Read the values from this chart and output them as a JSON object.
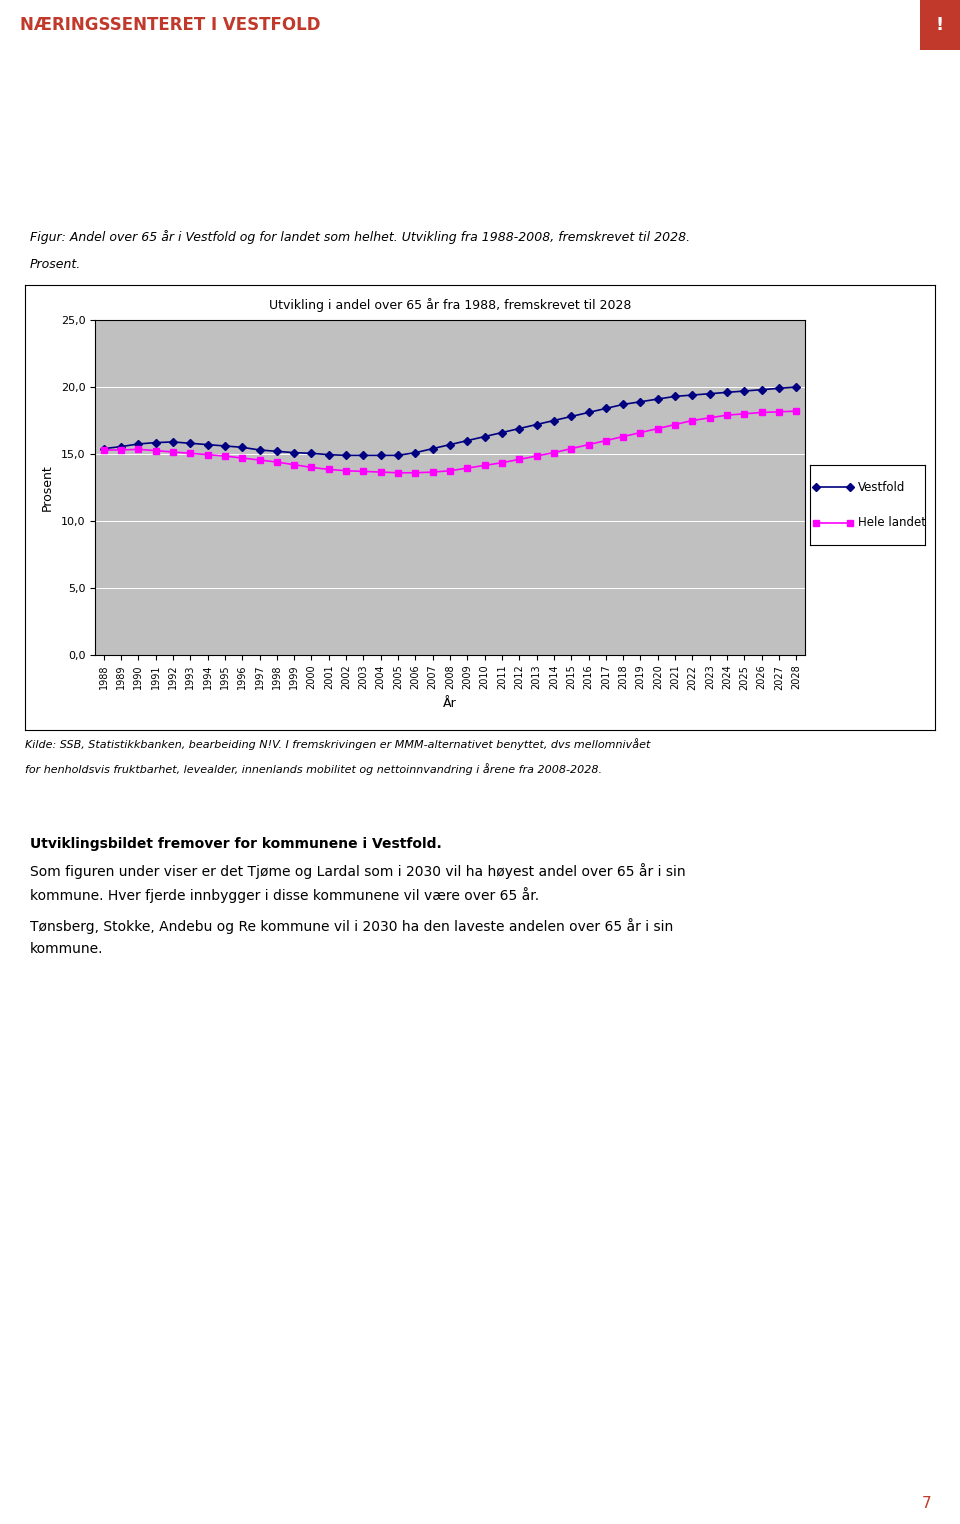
{
  "header_text": "NÆRINGSSENTERET I VESTFOLD",
  "header_bg": "#f0ece8",
  "header_color": "#c0392b",
  "red_box_color": "#c0392b",
  "fig_caption_line1": "Figur: Andel over 65 år i Vestfold og for landet som helhet. Utvikling fra 1988-2008, fremskrevet til 2028.",
  "fig_caption_line2": "Prosent.",
  "chart_title": "Utvikling i andel over 65 år fra 1988, fremskrevet til 2028",
  "xlabel": "År",
  "ylabel": "Prosent",
  "chart_bg": "#c0c0c0",
  "ylim": [
    0,
    25
  ],
  "yticks": [
    0.0,
    5.0,
    10.0,
    15.0,
    20.0,
    25.0
  ],
  "ytick_labels": [
    "0,0",
    "5,0",
    "10,0",
    "15,0",
    "20,0",
    "25,0"
  ],
  "years": [
    1988,
    1989,
    1990,
    1991,
    1992,
    1993,
    1994,
    1995,
    1996,
    1997,
    1998,
    1999,
    2000,
    2001,
    2002,
    2003,
    2004,
    2005,
    2006,
    2007,
    2008,
    2009,
    2010,
    2011,
    2012,
    2013,
    2014,
    2015,
    2016,
    2017,
    2018,
    2019,
    2020,
    2021,
    2022,
    2023,
    2024,
    2025,
    2026,
    2027,
    2028
  ],
  "vestfold": [
    15.4,
    15.55,
    15.75,
    15.85,
    15.9,
    15.8,
    15.7,
    15.6,
    15.5,
    15.3,
    15.2,
    15.1,
    15.05,
    14.95,
    14.9,
    14.9,
    14.9,
    14.9,
    15.1,
    15.4,
    15.7,
    16.0,
    16.3,
    16.6,
    16.9,
    17.2,
    17.5,
    17.8,
    18.1,
    18.4,
    18.7,
    18.9,
    19.1,
    19.3,
    19.4,
    19.5,
    19.6,
    19.7,
    19.8,
    19.9,
    20.0
  ],
  "hele_landet": [
    15.3,
    15.3,
    15.35,
    15.25,
    15.15,
    15.05,
    14.95,
    14.85,
    14.7,
    14.55,
    14.4,
    14.2,
    14.0,
    13.85,
    13.75,
    13.7,
    13.65,
    13.6,
    13.6,
    13.65,
    13.75,
    13.95,
    14.15,
    14.35,
    14.6,
    14.85,
    15.1,
    15.4,
    15.7,
    16.0,
    16.3,
    16.6,
    16.9,
    17.2,
    17.5,
    17.7,
    17.9,
    18.0,
    18.1,
    18.15,
    18.2
  ],
  "vestfold_color": "#000080",
  "hele_landet_color": "#ff00ff",
  "legend_vestfold": "Vestfold",
  "legend_hele_landet": "Hele landet",
  "source_text_line1": "Kilde: SSB, Statistikkbanken, bearbeiding N!V. I fremskrivingen er MMM-alternativet benyttet, dvs mellomnivået",
  "source_text_line2": "for henholdsvis fruktbarhet, levealder, innenlands mobilitet og nettoinnvandring i årene fra 2008-2028.",
  "body_bold_text": "Utviklingsbildet fremover for kommunene i Vestfold.",
  "body_text1_line1": "Som figuren under viser er det Tjøme og Lardal som i 2030 vil ha høyest andel over 65 år i sin",
  "body_text1_line2": "kommune. Hver fjerde innbygger i disse kommunene vil være over 65 år.",
  "body_text2_line1": "Tønsberg, Stokke, Andebu og Re kommune vil i 2030 ha den laveste andelen over 65 år i sin",
  "body_text2_line2": "kommune.",
  "page_number": "7",
  "page_bg": "#ffffff"
}
